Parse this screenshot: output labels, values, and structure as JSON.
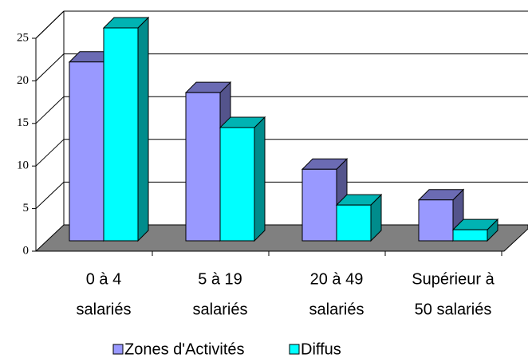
{
  "chart_data": {
    "type": "bar3d",
    "categories": [
      [
        "0 à 4",
        "salariés"
      ],
      [
        "5 à 19",
        "salariés"
      ],
      [
        "20 à 49",
        "salariés"
      ],
      [
        "Supérieur à",
        "50 salariés"
      ]
    ],
    "series": [
      {
        "name": "Zones d'Activités",
        "color": "#9999ff",
        "values": [
          21,
          17.4,
          8.4,
          4.8
        ]
      },
      {
        "name": "Diffus",
        "color": "#00ffff",
        "values": [
          25,
          13.3,
          4.2,
          1.3
        ]
      }
    ],
    "ylim": [
      0,
      25
    ],
    "yticks": [
      0,
      5,
      10,
      15,
      20,
      25
    ],
    "grid": true,
    "legend": "bottom"
  }
}
